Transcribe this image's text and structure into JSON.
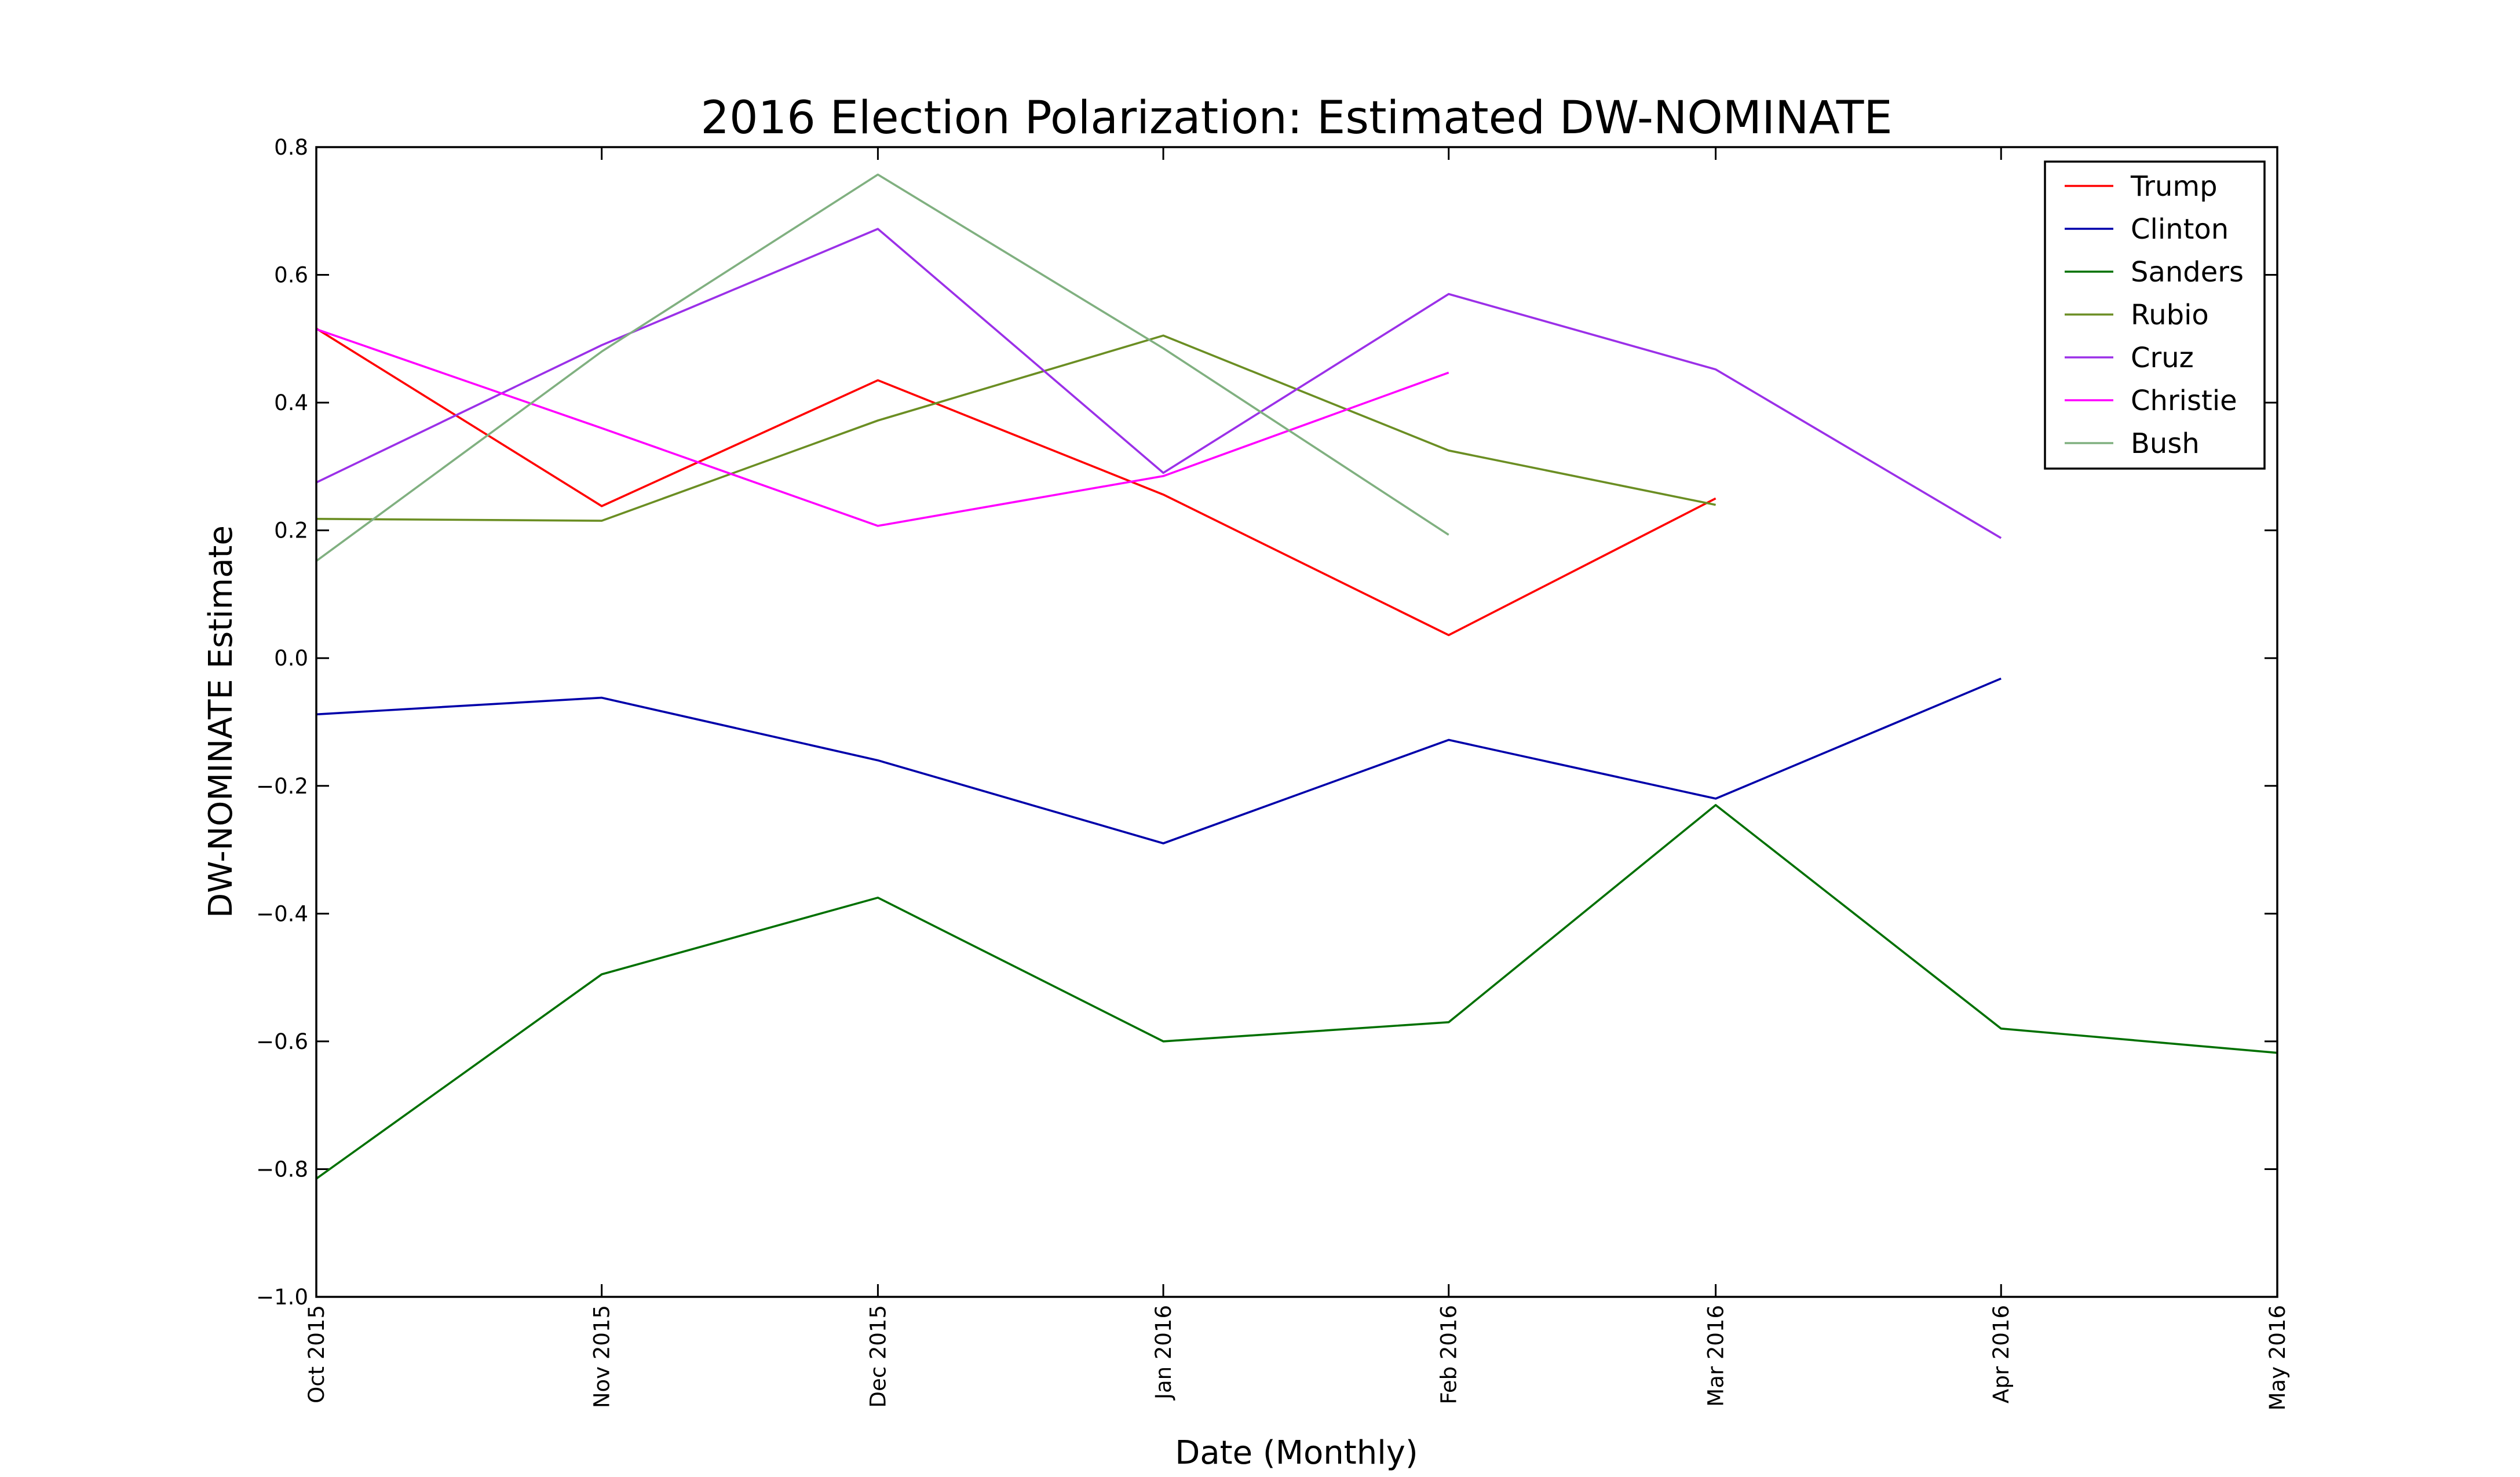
{
  "chart_data": {
    "type": "line",
    "title": "2016 Election Polarization: Estimated DW-NOMINATE",
    "x_label": "Date (Monthly)",
    "y_label": "DW-NOMINATE Estimate",
    "x": [
      "2015-10",
      "2015-11",
      "2015-12",
      "2016-01",
      "2016-02",
      "2016-03",
      "2016-04",
      "2016-05"
    ],
    "xlim": [
      "2015-10",
      "2016-05"
    ],
    "xticks": [
      {
        "value": "2015-10",
        "label": "Oct 2015"
      },
      {
        "value": "2015-11",
        "label": "Nov 2015"
      },
      {
        "value": "2015-12",
        "label": "Dec 2015"
      },
      {
        "value": "2016-01",
        "label": "Jan 2016"
      },
      {
        "value": "2016-02",
        "label": "Feb 2016"
      },
      {
        "value": "2016-03",
        "label": "Mar 2016"
      },
      {
        "value": "2016-04",
        "label": "Apr 2016"
      },
      {
        "value": "2016-05",
        "label": "May 2016"
      }
    ],
    "ylim": [
      -1.0,
      0.8
    ],
    "yticks": [
      {
        "value": -1.0,
        "label": "−1.0"
      },
      {
        "value": -0.8,
        "label": "−0.8"
      },
      {
        "value": -0.6,
        "label": "−0.6"
      },
      {
        "value": -0.4,
        "label": "−0.4"
      },
      {
        "value": -0.2,
        "label": "−0.2"
      },
      {
        "value": 0,
        "label": "0.0"
      },
      0.2,
      0.4,
      0.6,
      0.8
    ],
    "legend": "upper right",
    "series": [
      {
        "name": "Trump",
        "color": "#ff0000",
        "values": [
          0.516,
          0.238,
          0.435,
          0.256,
          0.036,
          0.25,
          null,
          null
        ]
      },
      {
        "name": "Clinton",
        "color": "#0000aa",
        "values": [
          -0.088,
          -0.062,
          -0.16,
          -0.29,
          -0.128,
          -0.22,
          -0.032,
          null
        ]
      },
      {
        "name": "Sanders",
        "color": "#007000",
        "values": [
          -0.815,
          -0.495,
          -0.375,
          -0.6,
          -0.57,
          -0.23,
          -0.58,
          -0.618
        ]
      },
      {
        "name": "Rubio",
        "color": "#6b8e23",
        "values": [
          0.218,
          0.215,
          0.372,
          0.505,
          0.325,
          0.24,
          null,
          null
        ]
      },
      {
        "name": "Cruz",
        "color": "#9b30e8",
        "values": [
          0.275,
          0.49,
          0.672,
          0.29,
          0.57,
          0.452,
          0.188,
          null
        ]
      },
      {
        "name": "Christie",
        "color": "#ff00ff",
        "values": [
          0.515,
          0.36,
          0.207,
          0.285,
          0.447,
          null,
          null,
          null
        ]
      },
      {
        "name": "Bush",
        "color": "#80b080",
        "values": [
          0.152,
          0.48,
          0.757,
          0.485,
          0.193,
          null,
          null,
          null
        ]
      }
    ]
  }
}
